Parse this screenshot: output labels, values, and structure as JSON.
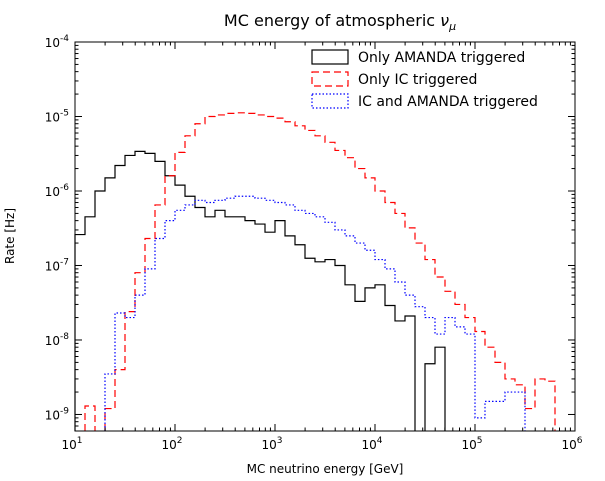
{
  "chart_data": {
    "type": "histogram-step",
    "title": "MC energy of atmospheric ",
    "title_symbol": "ν",
    "title_subscript": "μ",
    "xlabel": "MC neutrino energy [GeV]",
    "ylabel": "Rate [Hz]",
    "xscale": "log",
    "yscale": "log",
    "xlim": [
      10,
      1000000
    ],
    "ylim": [
      6e-10,
      0.0001
    ],
    "x_tick_labels": [
      {
        "base": "10",
        "exp": "1"
      },
      {
        "base": "10",
        "exp": "2"
      },
      {
        "base": "10",
        "exp": "3"
      },
      {
        "base": "10",
        "exp": "4"
      },
      {
        "base": "10",
        "exp": "5"
      },
      {
        "base": "10",
        "exp": "6"
      }
    ],
    "y_tick_labels": [
      {
        "base": "10",
        "exp": "-9"
      },
      {
        "base": "10",
        "exp": "-8"
      },
      {
        "base": "10",
        "exp": "-7"
      },
      {
        "base": "10",
        "exp": "-6"
      },
      {
        "base": "10",
        "exp": "-5"
      },
      {
        "base": "10",
        "exp": "-4"
      }
    ],
    "legend_position": "top-right",
    "bin_edges_log10": [
      1.0,
      1.1,
      1.2,
      1.3,
      1.4,
      1.5,
      1.6,
      1.7,
      1.8,
      1.9,
      2.0,
      2.1,
      2.2,
      2.3,
      2.4,
      2.5,
      2.6,
      2.7,
      2.8,
      2.9,
      3.0,
      3.1,
      3.2,
      3.3,
      3.4,
      3.5,
      3.6,
      3.7,
      3.8,
      3.9,
      4.0,
      4.1,
      4.2,
      4.3,
      4.4,
      4.5,
      4.6,
      4.7,
      4.8,
      4.9,
      5.0,
      5.1,
      5.2,
      5.3,
      5.4,
      5.5,
      5.6,
      5.7,
      5.8,
      5.9,
      6.0
    ],
    "series": [
      {
        "name": "Only AMANDA triggered",
        "color": "#000000",
        "style": "solid",
        "values": [
          2.6e-07,
          4.5e-07,
          1e-06,
          1.5e-06,
          2.2e-06,
          3e-06,
          3.4e-06,
          3.2e-06,
          2.5e-06,
          1.6e-06,
          1.2e-06,
          8.5e-07,
          6e-07,
          4.5e-07,
          5.5e-07,
          4.5e-07,
          4.5e-07,
          4e-07,
          3.6e-07,
          2.8e-07,
          4e-07,
          2.5e-07,
          1.9e-07,
          1.25e-07,
          1.12e-07,
          1.2e-07,
          1e-07,
          5.5e-08,
          3.3e-08,
          5e-08,
          5.5e-08,
          2.9e-08,
          1.8e-08,
          2.1e-08,
          null,
          4.8e-09,
          8e-09,
          null,
          null,
          null,
          null,
          null,
          null,
          null,
          null,
          null,
          null,
          null,
          null,
          null
        ]
      },
      {
        "name": "Only IC triggered",
        "color": "#ff0000",
        "style": "dashed",
        "values": [
          null,
          1.3e-09,
          null,
          1.2e-09,
          4e-09,
          2.4e-08,
          8e-08,
          2.3e-07,
          6.5e-07,
          1.6e-06,
          3.3e-06,
          5.5e-06,
          8e-06,
          1e-05,
          1.05e-05,
          1.1e-05,
          1.12e-05,
          1.1e-05,
          1.05e-05,
          1e-05,
          9.5e-06,
          8.5e-06,
          7.5e-06,
          6.5e-06,
          5.5e-06,
          4.5e-06,
          3.5e-06,
          2.8e-06,
          2e-06,
          1.5e-06,
          1e-06,
          7e-07,
          5e-07,
          3.2e-07,
          2e-07,
          1.2e-07,
          7e-08,
          4.5e-08,
          3e-08,
          2e-08,
          1.3e-08,
          8e-09,
          5e-09,
          3e-09,
          2.5e-09,
          1.2e-09,
          3e-09,
          2.8e-09,
          null,
          null
        ]
      },
      {
        "name": "IC and AMANDA triggered",
        "color": "#0000ff",
        "style": "dotted",
        "values": [
          null,
          null,
          null,
          3.5e-09,
          2.3e-08,
          2e-08,
          4e-08,
          9e-08,
          2.3e-07,
          4e-07,
          5.5e-07,
          6.5e-07,
          7.5e-07,
          7e-07,
          7.5e-07,
          8e-07,
          8.5e-07,
          8.5e-07,
          8e-07,
          7.5e-07,
          7e-07,
          6.5e-07,
          5.5e-07,
          5e-07,
          4.5e-07,
          3.8e-07,
          3e-07,
          2.5e-07,
          2e-07,
          1.6e-07,
          1.2e-07,
          9e-08,
          6e-08,
          4e-08,
          2.8e-08,
          2e-08,
          1.2e-08,
          2e-08,
          1.5e-08,
          1.2e-08,
          9e-10,
          1.5e-09,
          1.5e-09,
          2e-09,
          2e-09,
          null,
          null,
          null,
          null,
          null
        ]
      }
    ]
  }
}
